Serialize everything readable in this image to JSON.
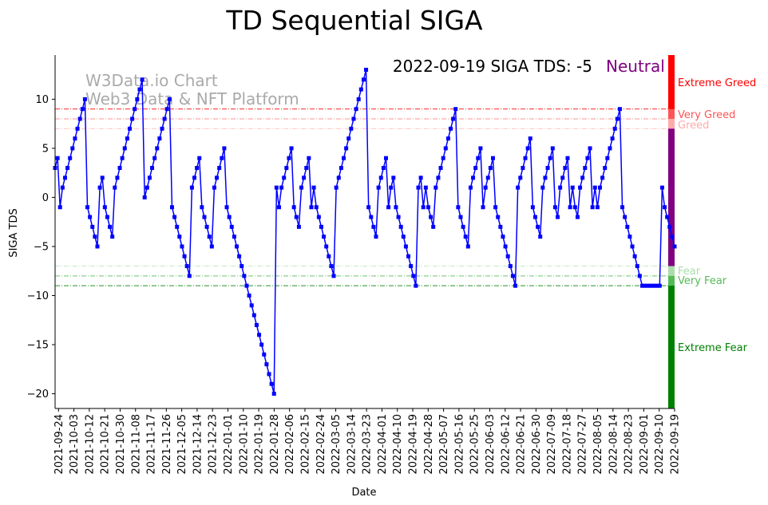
{
  "chart_data": {
    "type": "line",
    "title": "TD Sequential SIGA",
    "xlabel": "Date",
    "ylabel": "SIGA TDS",
    "ylim": [
      -21.5,
      14.5
    ],
    "y_ticks": [
      10,
      5,
      0,
      -5,
      -10,
      -15,
      -20
    ],
    "y_tick_labels": [
      "10",
      "5",
      "0",
      "−5",
      "−10",
      "−15",
      "−20"
    ],
    "x_start_date": "2021-09-22",
    "x_end_date": "2022-09-19",
    "x_tick_labels": [
      "2021-09-24",
      "2021-10-03",
      "2021-10-12",
      "2021-10-21",
      "2021-10-30",
      "2021-11-08",
      "2021-11-17",
      "2021-11-26",
      "2021-12-05",
      "2021-12-14",
      "2021-12-23",
      "2022-01-01",
      "2022-01-10",
      "2022-01-19",
      "2022-01-28",
      "2022-02-06",
      "2022-02-15",
      "2022-02-24",
      "2022-03-05",
      "2022-03-14",
      "2022-03-23",
      "2022-04-01",
      "2022-04-10",
      "2022-04-19",
      "2022-04-28",
      "2022-05-07",
      "2022-05-16",
      "2022-05-25",
      "2022-06-03",
      "2022-06-12",
      "2022-06-21",
      "2022-06-30",
      "2022-07-09",
      "2022-07-18",
      "2022-07-27",
      "2022-08-05",
      "2022-08-14",
      "2022-08-23",
      "2022-09-01",
      "2022-09-10",
      "2022-09-19"
    ],
    "header": "2022-09-19 SIGA TDS: -5",
    "status": "Neutral",
    "watermark": [
      "W3Data.io Chart",
      "Web3 Data & NFT Platform"
    ],
    "zones": [
      {
        "label": "Extreme Greed",
        "color": "#ff0000",
        "level": null
      },
      {
        "label": "Very Greed",
        "color": "#ff0000",
        "level": 9,
        "opacity": 0.85
      },
      {
        "label": "Greed",
        "color": "#ff6666",
        "level": 8,
        "opacity": 0.7
      },
      {
        "label": "",
        "color": "#ff9999",
        "level": 7,
        "opacity": 0.6
      },
      {
        "label": "Fear",
        "color": "#99d699",
        "level": -7,
        "opacity": 0.6
      },
      {
        "label": "Very Fear",
        "color": "#33aa33",
        "level": -8,
        "opacity": 0.7
      },
      {
        "label": "",
        "color": "#008000",
        "level": -9,
        "opacity": 0.85
      },
      {
        "label": "Extreme Fear",
        "color": "#008000",
        "level": null
      }
    ],
    "series": [
      {
        "name": "SIGA TDS",
        "color": "#0000ff",
        "values": [
          3,
          4,
          -1,
          1,
          2,
          3,
          4,
          5,
          6,
          7,
          8,
          9,
          10,
          -1,
          -2,
          -3,
          -4,
          -5,
          1,
          2,
          -1,
          -2,
          -3,
          -4,
          1,
          2,
          3,
          4,
          5,
          6,
          7,
          8,
          9,
          10,
          11,
          12,
          0,
          1,
          2,
          3,
          4,
          5,
          6,
          7,
          8,
          9,
          10,
          -1,
          -2,
          -3,
          -4,
          -5,
          -6,
          -7,
          -8,
          1,
          2,
          3,
          4,
          -1,
          -2,
          -3,
          -4,
          -5,
          1,
          2,
          3,
          4,
          5,
          -1,
          -2,
          -3,
          -4,
          -5,
          -6,
          -7,
          -8,
          -9,
          -10,
          -11,
          -12,
          -13,
          -14,
          -15,
          -16,
          -17,
          -18,
          -19,
          -20,
          1,
          -1,
          1,
          2,
          3,
          4,
          5,
          -1,
          -2,
          -3,
          1,
          2,
          3,
          4,
          -1,
          1,
          -1,
          -2,
          -3,
          -4,
          -5,
          -6,
          -7,
          -8,
          1,
          2,
          3,
          4,
          5,
          6,
          7,
          8,
          9,
          10,
          11,
          12,
          13,
          -1,
          -2,
          -3,
          -4,
          1,
          2,
          3,
          4,
          -1,
          1,
          2,
          -1,
          -2,
          -3,
          -4,
          -5,
          -6,
          -7,
          -8,
          -9,
          1,
          2,
          -1,
          1,
          -1,
          -2,
          -3,
          1,
          2,
          3,
          4,
          5,
          6,
          7,
          8,
          9,
          -1,
          -2,
          -3,
          -4,
          -5,
          1,
          2,
          3,
          4,
          5,
          -1,
          1,
          2,
          3,
          4,
          -1,
          -2,
          -3,
          -4,
          -5,
          -6,
          -7,
          -8,
          -9,
          1,
          2,
          3,
          4,
          5,
          6,
          -1,
          -2,
          -3,
          -4,
          1,
          2,
          3,
          4,
          5,
          -1,
          -2,
          1,
          2,
          3,
          4,
          -1,
          1,
          -1,
          -2,
          1,
          2,
          3,
          4,
          5,
          -1,
          1,
          -1,
          1,
          2,
          3,
          4,
          5,
          6,
          7,
          8,
          9,
          -1,
          -2,
          -3,
          -4,
          -5,
          -6,
          -7,
          -8,
          -9,
          -9,
          -9,
          -9,
          -9,
          -9,
          -9,
          -9,
          1,
          -1,
          -2,
          -3,
          -4,
          -5
        ]
      }
    ]
  }
}
